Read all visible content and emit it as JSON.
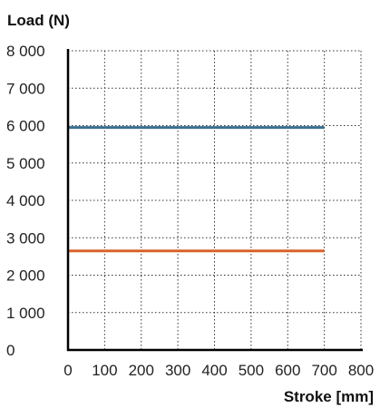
{
  "chart_data": {
    "type": "line",
    "xlabel": "Stroke [mm]",
    "ylabel": "Load (N)",
    "xlim": [
      0,
      800
    ],
    "ylim": [
      0,
      8000
    ],
    "x_ticks": [
      0,
      100,
      200,
      300,
      400,
      500,
      600,
      700,
      800
    ],
    "x_tick_labels": [
      "0",
      "100",
      "200",
      "300",
      "400",
      "500",
      "600",
      "700",
      "800"
    ],
    "y_ticks": [
      0,
      1000,
      2000,
      3000,
      4000,
      5000,
      6000,
      7000,
      8000
    ],
    "y_tick_labels": [
      "0",
      "1 000",
      "2 000",
      "3 000",
      "4 000",
      "5 000",
      "6 000",
      "7 000",
      "8 000"
    ],
    "grid": true,
    "series": [
      {
        "color": "#3a6f8f",
        "x": [
          0,
          700
        ],
        "y": [
          5950,
          5950
        ]
      },
      {
        "color": "#d9622b",
        "x": [
          0,
          700
        ],
        "y": [
          2650,
          2650
        ]
      }
    ]
  }
}
